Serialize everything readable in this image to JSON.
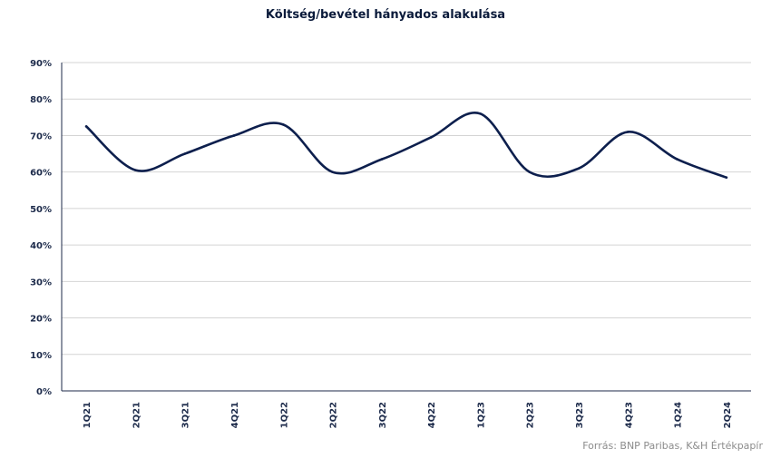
{
  "chart_data": {
    "type": "line",
    "title": "Költség/bevétel hányados alakulása",
    "xlabel": "",
    "ylabel": "",
    "categories": [
      "1Q21",
      "2Q21",
      "3Q21",
      "4Q21",
      "1Q22",
      "2Q22",
      "3Q22",
      "4Q22",
      "1Q23",
      "2Q23",
      "3Q23",
      "4Q23",
      "1Q24",
      "2Q24"
    ],
    "series": [
      {
        "values": [
          72.5,
          60.5,
          65.0,
          70.0,
          73.0,
          60.0,
          63.5,
          69.5,
          76.0,
          60.0,
          61.0,
          71.0,
          63.5,
          58.5
        ]
      }
    ],
    "y_ticks": [
      "0%",
      "10%",
      "20%",
      "30%",
      "40%",
      "50%",
      "60%",
      "70%",
      "80%",
      "90%"
    ],
    "ylim": [
      0,
      90
    ],
    "grid": true,
    "line_color": "#0d1f4d",
    "source": "Forrás: BNP Paribas, K&H Értékpapír"
  }
}
